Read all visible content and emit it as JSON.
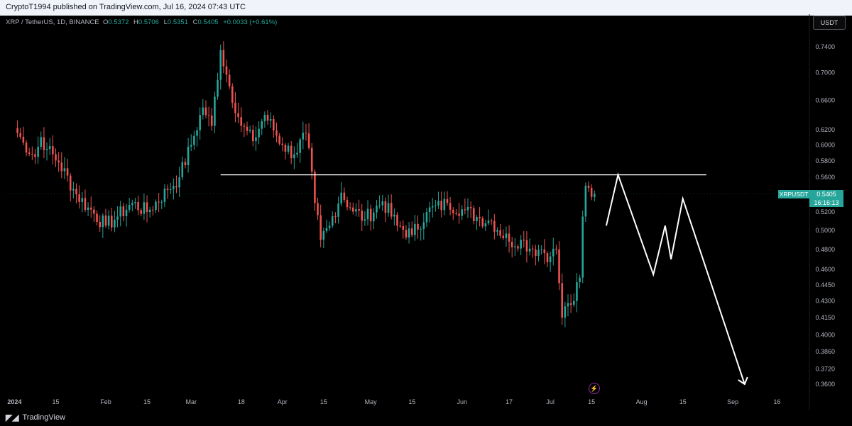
{
  "header": {
    "published_text": "CryptoT1994 published on TradingView.com, Jul 16, 2024 07:43 UTC"
  },
  "symbol_bar": {
    "title": "XRP / TetherUS, 1D, BINANCE",
    "open_label": "O",
    "open": "0.5372",
    "high_label": "H",
    "high": "0.5706",
    "low_label": "L",
    "low": "0.5351",
    "close_label": "C",
    "close": "0.5405",
    "change": "+0.0033 (+0.61%)"
  },
  "currency_button": "USDT",
  "current_price": {
    "symbol": "XRPUSDT",
    "price": "0.5405",
    "countdown": "16:16:13"
  },
  "footer": {
    "brand": "TradingView"
  },
  "colors": {
    "up": "#26a69a",
    "down": "#ef5350",
    "background": "#000000",
    "drawing": "#ffffff"
  },
  "chart_data": {
    "type": "candlestick",
    "symbol": "XRP / TetherUS",
    "interval": "1D",
    "y_scale": "log",
    "y_ticks": [
      "0.7400",
      "0.7000",
      "0.6600",
      "0.6200",
      "0.6000",
      "0.5800",
      "0.5600",
      "0.5200",
      "0.5000",
      "0.4800",
      "0.4600",
      "0.4450",
      "0.4300",
      "0.4150",
      "0.4000",
      "0.3860",
      "0.3720",
      "0.3600"
    ],
    "x_ticks": [
      "2024",
      "15",
      "Feb",
      "15",
      "Mar",
      "18",
      "Apr",
      "15",
      "May",
      "15",
      "Jun",
      "17",
      "Jul",
      "15",
      "Aug",
      "15",
      "Sep",
      "16"
    ],
    "x_tick_dates": [
      "2024-01-01",
      "2024-01-15",
      "2024-02-01",
      "2024-02-15",
      "2024-03-01",
      "2024-03-18",
      "2024-04-01",
      "2024-04-15",
      "2024-05-01",
      "2024-05-15",
      "2024-06-01",
      "2024-06-17",
      "2024-07-01",
      "2024-07-15",
      "2024-08-01",
      "2024-08-15",
      "2024-09-01",
      "2024-09-16"
    ],
    "close_anchors": [
      [
        "2024-01-01",
        0.622
      ],
      [
        "2024-01-04",
        0.603
      ],
      [
        "2024-01-08",
        0.585
      ],
      [
        "2024-01-10",
        0.61
      ],
      [
        "2024-01-12",
        0.595
      ],
      [
        "2024-01-16",
        0.578
      ],
      [
        "2024-01-22",
        0.54
      ],
      [
        "2024-01-26",
        0.525
      ],
      [
        "2024-02-01",
        0.505
      ],
      [
        "2024-02-05",
        0.515
      ],
      [
        "2024-02-10",
        0.53
      ],
      [
        "2024-02-15",
        0.52
      ],
      [
        "2024-02-22",
        0.545
      ],
      [
        "2024-02-26",
        0.56
      ],
      [
        "2024-03-01",
        0.6
      ],
      [
        "2024-03-05",
        0.65
      ],
      [
        "2024-03-08",
        0.625
      ],
      [
        "2024-03-11",
        0.735
      ],
      [
        "2024-03-14",
        0.68
      ],
      [
        "2024-03-18",
        0.625
      ],
      [
        "2024-03-22",
        0.605
      ],
      [
        "2024-03-26",
        0.64
      ],
      [
        "2024-04-01",
        0.6
      ],
      [
        "2024-04-05",
        0.588
      ],
      [
        "2024-04-09",
        0.615
      ],
      [
        "2024-04-12",
        0.53
      ],
      [
        "2024-04-14",
        0.49
      ],
      [
        "2024-04-17",
        0.505
      ],
      [
        "2024-04-21",
        0.542
      ],
      [
        "2024-04-24",
        0.525
      ],
      [
        "2024-04-29",
        0.512
      ],
      [
        "2024-05-05",
        0.532
      ],
      [
        "2024-05-10",
        0.505
      ],
      [
        "2024-05-15",
        0.495
      ],
      [
        "2024-05-20",
        0.52
      ],
      [
        "2024-05-27",
        0.53
      ],
      [
        "2024-06-01",
        0.523
      ],
      [
        "2024-06-07",
        0.513
      ],
      [
        "2024-06-11",
        0.51
      ],
      [
        "2024-06-17",
        0.488
      ],
      [
        "2024-06-21",
        0.49
      ],
      [
        "2024-06-25",
        0.48
      ],
      [
        "2024-06-28",
        0.48
      ],
      [
        "2024-07-01",
        0.473
      ],
      [
        "2024-07-03",
        0.48
      ],
      [
        "2024-07-05",
        0.415
      ],
      [
        "2024-07-07",
        0.428
      ],
      [
        "2024-07-09",
        0.43
      ],
      [
        "2024-07-11",
        0.452
      ],
      [
        "2024-07-12",
        0.515
      ],
      [
        "2024-07-13",
        0.55
      ],
      [
        "2024-07-15",
        0.537
      ],
      [
        "2024-07-16",
        0.5405
      ]
    ],
    "horizontal_line": {
      "price": 0.563,
      "from": "2024-03-11",
      "to": "2024-08-23"
    },
    "projection_path": [
      [
        "2024-07-20",
        0.505
      ],
      [
        "2024-07-24",
        0.563
      ],
      [
        "2024-08-05",
        0.455
      ],
      [
        "2024-08-09",
        0.505
      ],
      [
        "2024-08-11",
        0.47
      ],
      [
        "2024-08-15",
        0.535
      ],
      [
        "2024-09-05",
        0.36
      ]
    ],
    "last_price": 0.5405
  }
}
